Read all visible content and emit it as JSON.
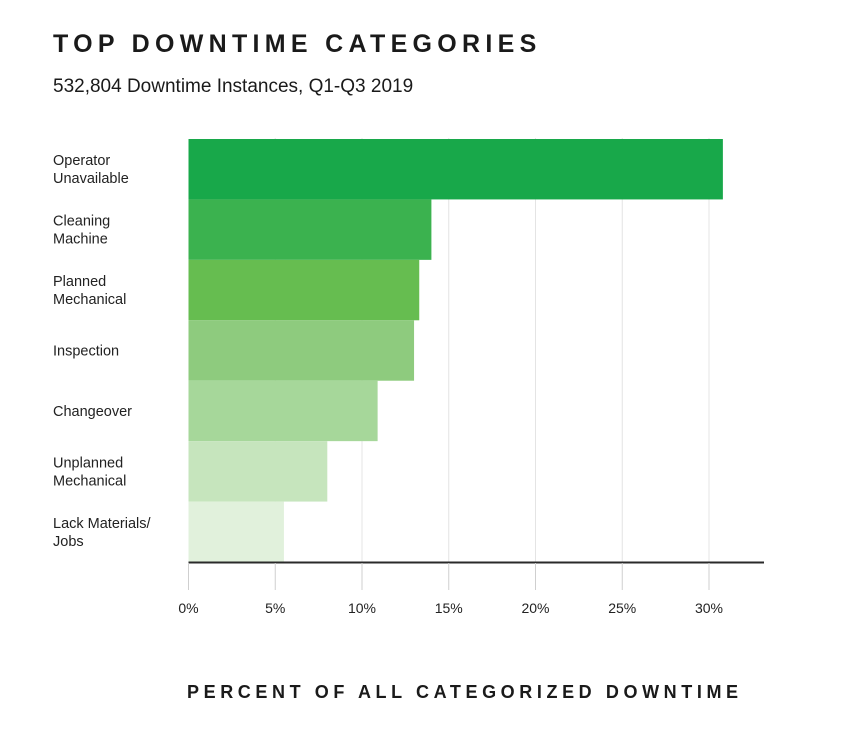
{
  "chart_data": {
    "type": "bar",
    "orientation": "horizontal",
    "title": "TOP DOWNTIME CATEGORIES",
    "subtitle": "532,804 Downtime Instances, Q1-Q3 2019",
    "xlabel": "PERCENT OF ALL CATEGORIZED DOWNTIME",
    "ylabel": "",
    "categories": [
      [
        "Operator",
        "Unavailable"
      ],
      [
        "Cleaning",
        "Machine"
      ],
      [
        "Planned",
        "Mechanical"
      ],
      [
        "Inspection"
      ],
      [
        "Changeover"
      ],
      [
        "Unplanned",
        "Mechanical"
      ],
      [
        "Lack Materials/",
        "Jobs"
      ]
    ],
    "values": [
      30.8,
      14.0,
      13.3,
      13.0,
      10.9,
      8.0,
      5.5
    ],
    "colors": [
      "#18a84a",
      "#3bb24f",
      "#66bd50",
      "#8ecb7e",
      "#a6d79a",
      "#c6e5bd",
      "#e1f1dc"
    ],
    "xlim": [
      0,
      33
    ],
    "ticks": [
      0,
      5,
      10,
      15,
      20,
      25,
      30
    ],
    "tick_labels": [
      "0%",
      "5%",
      "10%",
      "15%",
      "20%",
      "25%",
      "30%"
    ],
    "grid": true
  }
}
